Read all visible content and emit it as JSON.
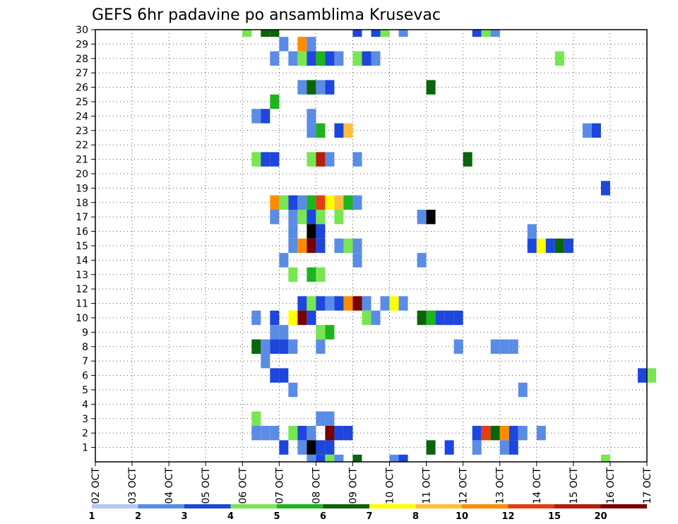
{
  "chart_data": {
    "type": "heatmap",
    "title": "GEFS 6hr padavine po ansamblima Krusevac",
    "xlabel": "",
    "ylabel": "",
    "y_ticks": [
      "1",
      "2",
      "3",
      "4",
      "5",
      "6",
      "7",
      "8",
      "9",
      "10",
      "11",
      "12",
      "13",
      "14",
      "15",
      "16",
      "17",
      "18",
      "19",
      "20",
      "21",
      "22",
      "23",
      "24",
      "25",
      "26",
      "27",
      "28",
      "29",
      "30"
    ],
    "x_ticks": [
      "02 OCT",
      "03 OCT",
      "04 OCT",
      "05 OCT",
      "06 OCT",
      "07 OCT",
      "08 OCT",
      "09 OCT",
      "10 OCT",
      "11 OCT",
      "12 OCT",
      "13 OCT",
      "14 OCT",
      "15 OCT",
      "16 OCT",
      "17 OCT"
    ],
    "time_step_hours": 6,
    "grid": "dotted",
    "legend": {
      "placement": "bottom",
      "labels": [
        "1",
        "2",
        "3",
        "4",
        "5",
        "6",
        "7",
        "8",
        "10",
        "12",
        "15",
        "20"
      ],
      "colors": [
        "#b4c8f5",
        "#5a8ce6",
        "#1e46dc",
        "#78e650",
        "#1eb41e",
        "#0a640a",
        "#ffff00",
        "#ffbe3c",
        "#ff8c00",
        "#e63c14",
        "#b41e0a",
        "#780000"
      ],
      "bins": [
        1,
        2,
        3,
        4,
        5,
        6,
        7,
        8,
        10,
        12,
        15,
        20
      ]
    },
    "cells": [
      {
        "m": 30,
        "t": [
          [
            16,
            3
          ],
          [
            18,
            5
          ],
          [
            19,
            5
          ],
          [
            28,
            2
          ],
          [
            30,
            2
          ],
          [
            31,
            3
          ],
          [
            33,
            1
          ],
          [
            41,
            2
          ],
          [
            42,
            3
          ],
          [
            43,
            1
          ]
        ]
      },
      {
        "m": 29,
        "t": [
          [
            20,
            1
          ],
          [
            22,
            8
          ],
          [
            23,
            1
          ]
        ]
      },
      {
        "m": 28,
        "t": [
          [
            19,
            1
          ],
          [
            21,
            1
          ],
          [
            22,
            3
          ],
          [
            23,
            2
          ],
          [
            24,
            4
          ],
          [
            25,
            2
          ],
          [
            26,
            1
          ],
          [
            28,
            3
          ],
          [
            29,
            2
          ],
          [
            30,
            1
          ],
          [
            50,
            3
          ]
        ]
      },
      {
        "m": 26,
        "t": [
          [
            22,
            1
          ],
          [
            23,
            5
          ],
          [
            24,
            1
          ],
          [
            25,
            2
          ],
          [
            36,
            5
          ]
        ]
      },
      {
        "m": 25,
        "t": [
          [
            19,
            4
          ]
        ]
      },
      {
        "m": 24,
        "t": [
          [
            17,
            1
          ],
          [
            18,
            2
          ],
          [
            23,
            1
          ]
        ]
      },
      {
        "m": 23,
        "t": [
          [
            23,
            1
          ],
          [
            24,
            4
          ],
          [
            26,
            2
          ],
          [
            27,
            7
          ],
          [
            53,
            1
          ],
          [
            54,
            2
          ]
        ]
      },
      {
        "m": 21,
        "t": [
          [
            17,
            3
          ],
          [
            18,
            2
          ],
          [
            19,
            2
          ],
          [
            23,
            3
          ],
          [
            24,
            10
          ],
          [
            25,
            1
          ],
          [
            28,
            1
          ],
          [
            40,
            5
          ]
        ]
      },
      {
        "m": 19,
        "t": [
          [
            55,
            2
          ]
        ]
      },
      {
        "m": 18,
        "t": [
          [
            19,
            8
          ],
          [
            20,
            3
          ],
          [
            21,
            2
          ],
          [
            22,
            1
          ],
          [
            23,
            4
          ],
          [
            24,
            9
          ],
          [
            25,
            6
          ],
          [
            26,
            7
          ],
          [
            27,
            4
          ],
          [
            28,
            1
          ]
        ]
      },
      {
        "m": 17,
        "t": [
          [
            19,
            1
          ],
          [
            21,
            1
          ],
          [
            22,
            3
          ],
          [
            23,
            2
          ],
          [
            24,
            3
          ],
          [
            26,
            3
          ],
          [
            35,
            1
          ],
          [
            36,
            15
          ]
        ]
      },
      {
        "m": 16,
        "t": [
          [
            21,
            1
          ],
          [
            23,
            12
          ],
          [
            24,
            2
          ],
          [
            47,
            1
          ]
        ]
      },
      {
        "m": 15,
        "t": [
          [
            21,
            1
          ],
          [
            22,
            8
          ],
          [
            23,
            11
          ],
          [
            24,
            2
          ],
          [
            26,
            1
          ],
          [
            27,
            3
          ],
          [
            28,
            1
          ],
          [
            47,
            2
          ],
          [
            48,
            6
          ],
          [
            49,
            2
          ],
          [
            50,
            5
          ],
          [
            51,
            2
          ]
        ]
      },
      {
        "m": 14,
        "t": [
          [
            20,
            1
          ],
          [
            28,
            1
          ],
          [
            35,
            1
          ]
        ]
      },
      {
        "m": 13,
        "t": [
          [
            21,
            3
          ],
          [
            23,
            4
          ],
          [
            24,
            3
          ]
        ]
      },
      {
        "m": 11,
        "t": [
          [
            22,
            2
          ],
          [
            23,
            3
          ],
          [
            24,
            2
          ],
          [
            25,
            1
          ],
          [
            26,
            2
          ],
          [
            27,
            8
          ],
          [
            28,
            11
          ],
          [
            29,
            1
          ],
          [
            31,
            1
          ],
          [
            32,
            6
          ],
          [
            33,
            1
          ]
        ]
      },
      {
        "m": 10,
        "t": [
          [
            17,
            1
          ],
          [
            19,
            2
          ],
          [
            21,
            6
          ],
          [
            22,
            11
          ],
          [
            23,
            2
          ],
          [
            29,
            3
          ],
          [
            30,
            1
          ],
          [
            35,
            5
          ],
          [
            36,
            4
          ],
          [
            37,
            2
          ],
          [
            38,
            2
          ],
          [
            39,
            2
          ]
        ]
      },
      {
        "m": 9,
        "t": [
          [
            19,
            1
          ],
          [
            20,
            1
          ],
          [
            24,
            3
          ],
          [
            25,
            4
          ]
        ]
      },
      {
        "m": 8,
        "t": [
          [
            17,
            5
          ],
          [
            18,
            1
          ],
          [
            19,
            2
          ],
          [
            20,
            2
          ],
          [
            21,
            1
          ],
          [
            24,
            1
          ],
          [
            39,
            1
          ],
          [
            43,
            1
          ],
          [
            44,
            1
          ],
          [
            45,
            1
          ]
        ]
      },
      {
        "m": 7,
        "t": [
          [
            18,
            1
          ]
        ]
      },
      {
        "m": 6,
        "t": [
          [
            19,
            2
          ],
          [
            20,
            2
          ],
          [
            59,
            2
          ],
          [
            60,
            3
          ]
        ]
      },
      {
        "m": 5,
        "t": [
          [
            21,
            1
          ],
          [
            46,
            1
          ]
        ]
      },
      {
        "m": 3,
        "t": [
          [
            17,
            3
          ],
          [
            24,
            1
          ],
          [
            25,
            1
          ]
        ]
      },
      {
        "m": 2,
        "t": [
          [
            17,
            1
          ],
          [
            18,
            1
          ],
          [
            19,
            1
          ],
          [
            21,
            3
          ],
          [
            22,
            2
          ],
          [
            23,
            1
          ],
          [
            25,
            11
          ],
          [
            26,
            2
          ],
          [
            27,
            2
          ],
          [
            41,
            2
          ],
          [
            42,
            9
          ],
          [
            43,
            5
          ],
          [
            44,
            8
          ],
          [
            45,
            2
          ],
          [
            46,
            1
          ],
          [
            48,
            1
          ]
        ]
      },
      {
        "m": 1,
        "t": [
          [
            20,
            2
          ],
          [
            22,
            1
          ],
          [
            23,
            15
          ],
          [
            24,
            2
          ],
          [
            25,
            2
          ],
          [
            36,
            5
          ],
          [
            38,
            2
          ],
          [
            41,
            1
          ],
          [
            44,
            1
          ],
          [
            45,
            2
          ]
        ]
      },
      {
        "m": 0,
        "t": [
          [
            23,
            1
          ],
          [
            24,
            2
          ],
          [
            25,
            3
          ],
          [
            26,
            1
          ],
          [
            28,
            5
          ],
          [
            32,
            1
          ],
          [
            33,
            2
          ],
          [
            55,
            3
          ]
        ]
      }
    ]
  }
}
